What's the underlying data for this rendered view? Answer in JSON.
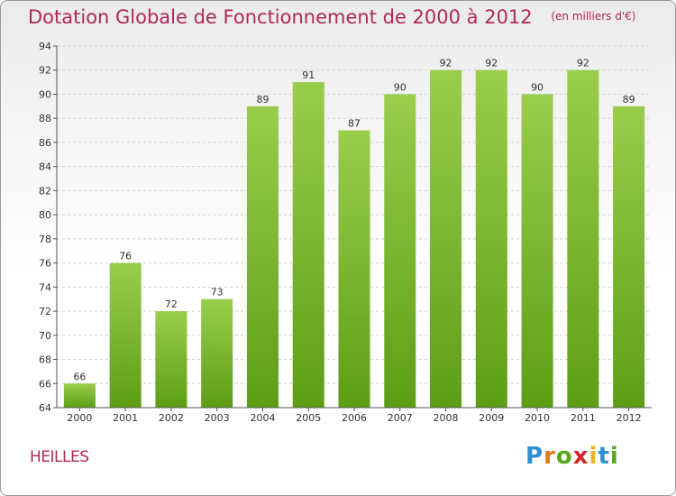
{
  "header": {
    "title": "Dotation Globale de Fonctionnement de 2000 à 2012",
    "unit": "(en milliers d'€)"
  },
  "footer": {
    "commune": "HEILLES",
    "logo_letters": [
      "P",
      "r",
      "o",
      "x",
      "i",
      "t",
      "i"
    ],
    "logo_text": "Proxiti"
  },
  "colors": {
    "title": "#b0285a",
    "bar_top": "#9acd4c",
    "bar_bottom": "#5d9e16",
    "grid": "#d0d0d0"
  },
  "chart_data": {
    "type": "bar",
    "title": "Dotation Globale de Fonctionnement de 2000 à 2012",
    "categories": [
      "2000",
      "2001",
      "2002",
      "2003",
      "2004",
      "2005",
      "2006",
      "2007",
      "2008",
      "2009",
      "2010",
      "2011",
      "2012"
    ],
    "values": [
      66,
      76,
      72,
      73,
      89,
      91,
      87,
      90,
      92,
      92,
      90,
      92,
      89
    ],
    "ylim": [
      64,
      94
    ],
    "yticks": [
      64,
      66,
      68,
      70,
      72,
      74,
      76,
      78,
      80,
      82,
      84,
      86,
      88,
      90,
      92,
      94
    ],
    "grid": true,
    "xlabel": "",
    "ylabel": ""
  }
}
